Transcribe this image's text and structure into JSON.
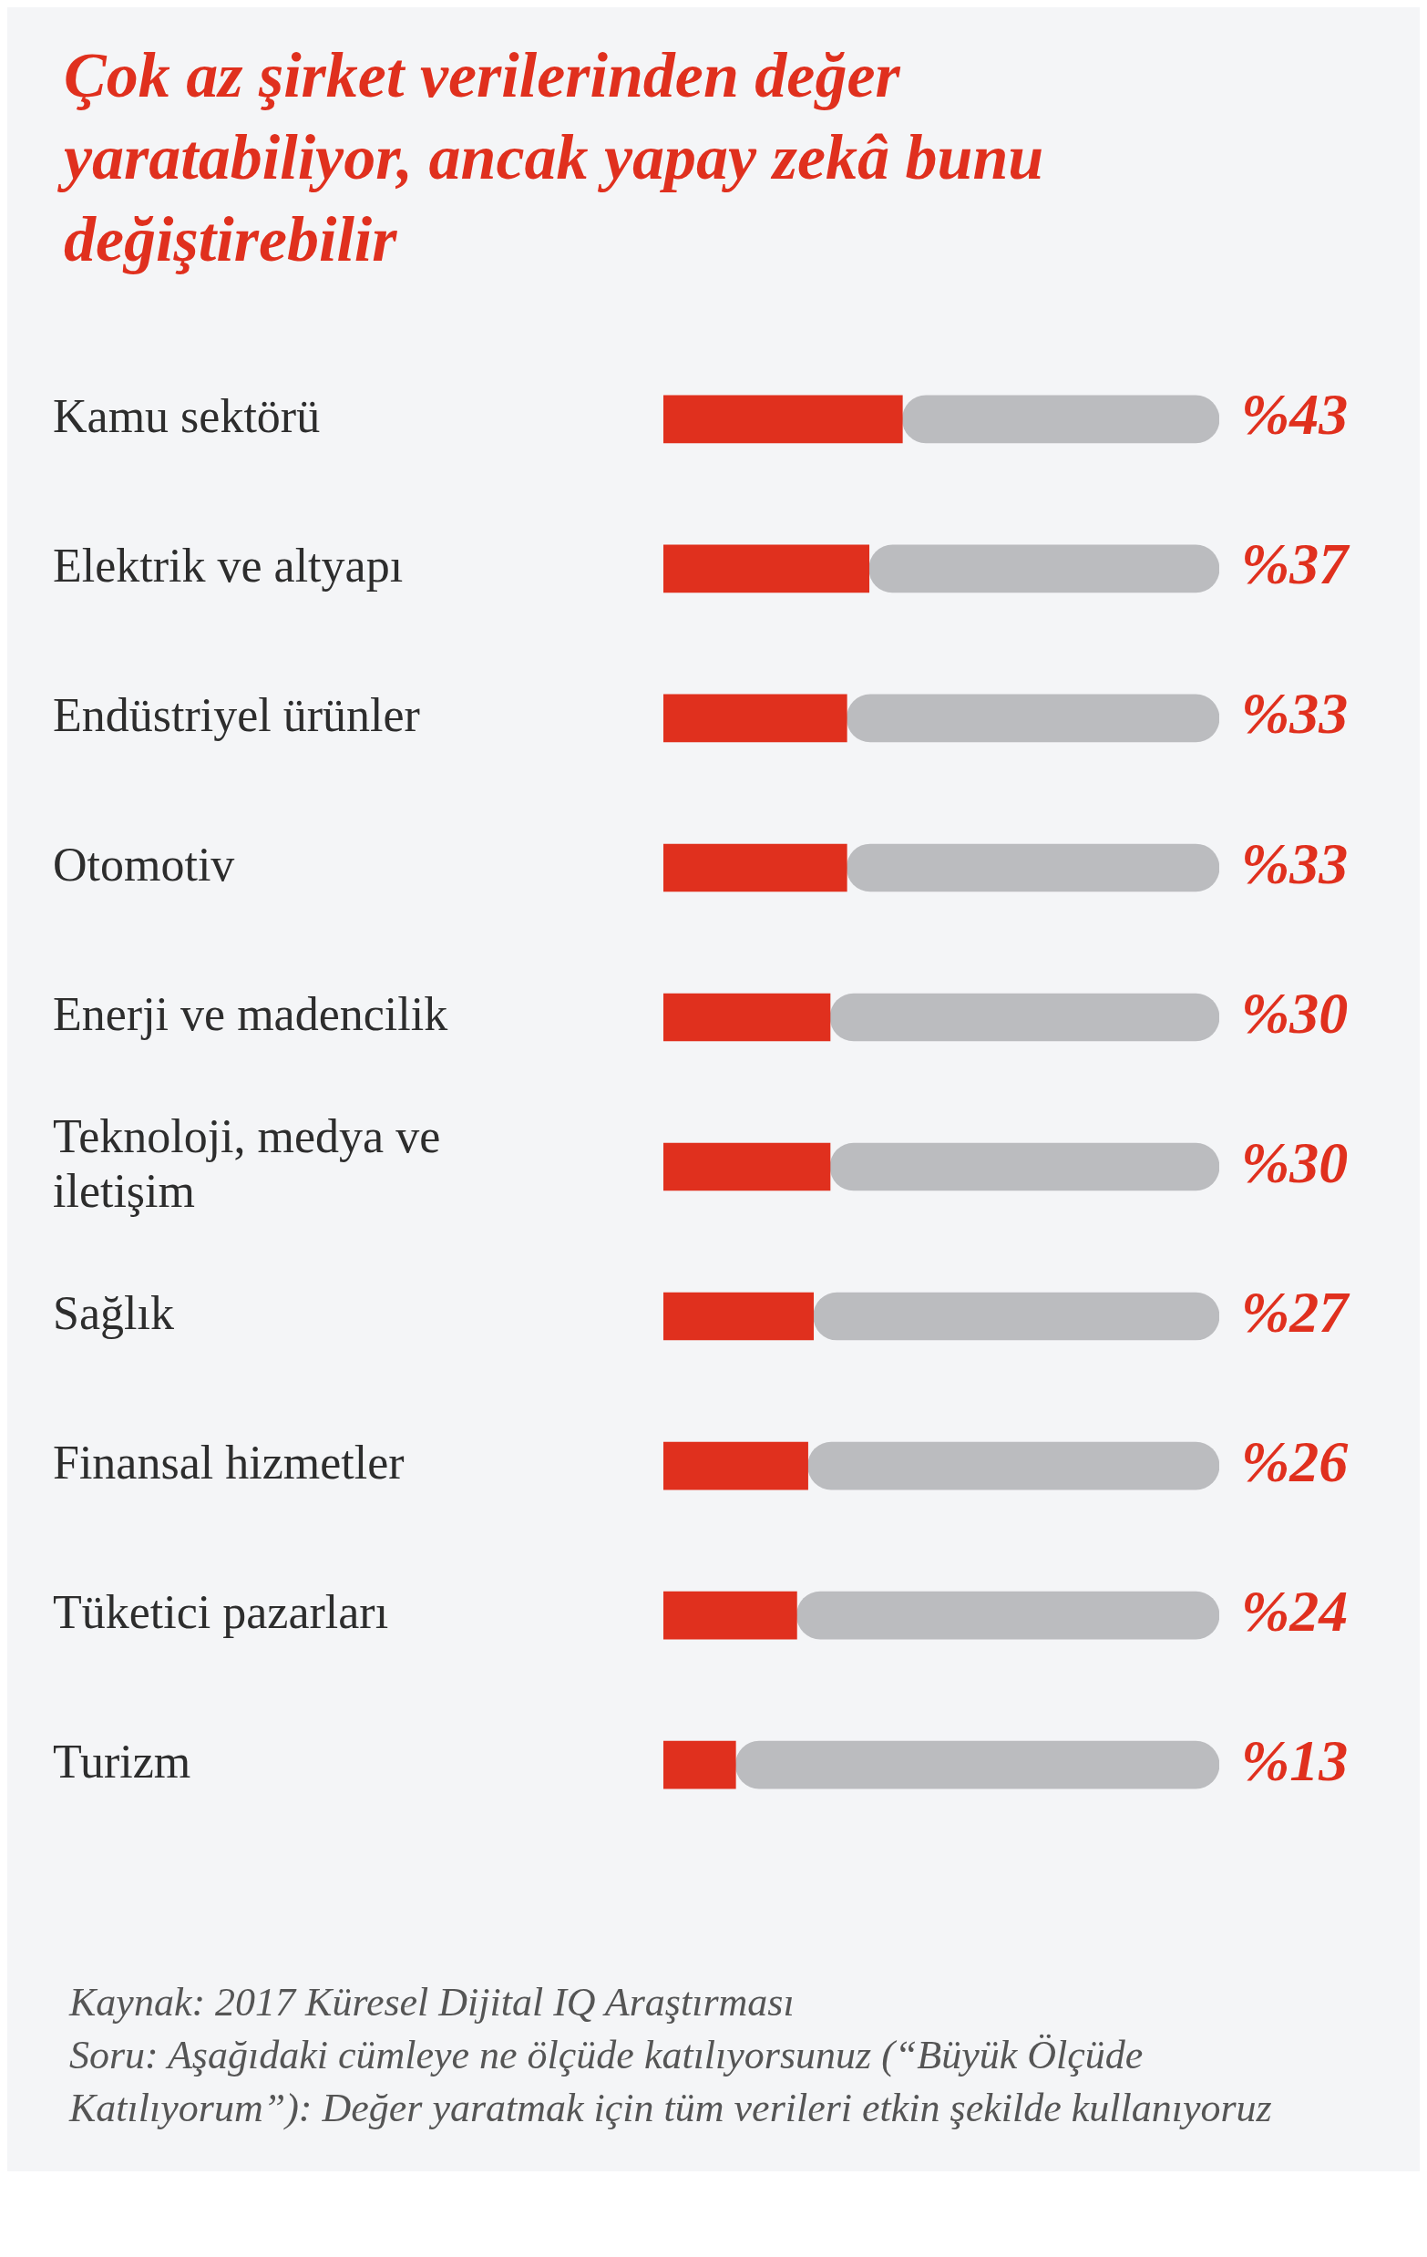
{
  "chart_data": {
    "type": "bar",
    "orientation": "horizontal",
    "stacked": true,
    "title": "Çok az şirket verilerinden değer yaratabiliyor, ancak yapay zekâ bunu değiştirebilir",
    "categories": [
      "Kamu sektörü",
      "Elektrik ve altyapı",
      "Endüstriyel ürünler",
      "Otomotiv",
      "Enerji ve madencilik",
      "Teknoloji, medya ve iletişim",
      "Sağlık",
      "Finansal hizmetler",
      "Tüketici pazarları",
      "Turizm"
    ],
    "series": [
      {
        "color": "#e0301e",
        "values": [
          43,
          37,
          33,
          33,
          30,
          30,
          27,
          26,
          24,
          13
        ],
        "value_labels": [
          "%43",
          "%37",
          "%33",
          "%33",
          "%30",
          "%30",
          "%27",
          "%26",
          "%24",
          "%13"
        ]
      },
      {
        "color": "#bbbcbf",
        "values": [
          57,
          63,
          67,
          67,
          70,
          70,
          73,
          74,
          76,
          87
        ]
      }
    ],
    "xlim": [
      0,
      100
    ],
    "tick_labels": "y",
    "grid": false,
    "legend": false,
    "annotations": [
      "Kaynak: 2017 Küresel Dijital IQ Araştırması",
      "Soru: Aşağıdaki cümleye ne ölçüde katılıyorsunuz (“Büyük Ölçüde Katılıyorum”): Değer yaratmak için tüm verileri etkin şekilde kullanıyoruz"
    ]
  }
}
